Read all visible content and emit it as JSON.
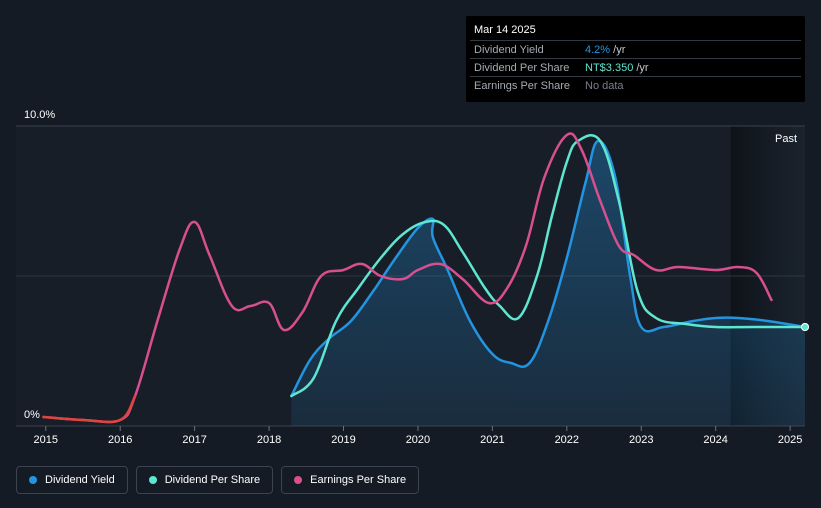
{
  "chart_data": {
    "type": "line",
    "title": "",
    "xlabel": "",
    "ylabel": "",
    "y_tick_labels": [
      "10.0%",
      "0%"
    ],
    "ylim": [
      0,
      10
    ],
    "xlim": [
      2014.6,
      2025.2
    ],
    "x_ticks": [
      "2015",
      "2016",
      "2017",
      "2018",
      "2019",
      "2020",
      "2021",
      "2022",
      "2023",
      "2024",
      "2025"
    ],
    "past_label": "Past",
    "past_start": 2024.2,
    "series": [
      {
        "name": "Dividend Yield",
        "color": "#2394df",
        "area": true,
        "points": [
          [
            2018.3,
            1.0
          ],
          [
            2018.55,
            2.2
          ],
          [
            2018.8,
            2.9
          ],
          [
            2019.1,
            3.5
          ],
          [
            2019.4,
            4.5
          ],
          [
            2019.7,
            5.6
          ],
          [
            2020.0,
            6.6
          ],
          [
            2020.2,
            6.9
          ],
          [
            2020.2,
            6.3
          ],
          [
            2020.4,
            5.2
          ],
          [
            2020.7,
            3.5
          ],
          [
            2021.0,
            2.4
          ],
          [
            2021.25,
            2.1
          ],
          [
            2021.5,
            2.1
          ],
          [
            2021.75,
            3.5
          ],
          [
            2022.0,
            5.6
          ],
          [
            2022.25,
            8.1
          ],
          [
            2022.42,
            9.5
          ],
          [
            2022.65,
            8.3
          ],
          [
            2022.85,
            5.0
          ],
          [
            2023.0,
            3.3
          ],
          [
            2023.3,
            3.3
          ],
          [
            2023.7,
            3.5
          ],
          [
            2024.0,
            3.6
          ],
          [
            2024.3,
            3.6
          ],
          [
            2024.7,
            3.5
          ],
          [
            2025.2,
            3.3
          ]
        ]
      },
      {
        "name": "Dividend Per Share",
        "color": "#5ee6d0",
        "area": false,
        "points": [
          [
            2018.3,
            1.0
          ],
          [
            2018.6,
            1.6
          ],
          [
            2018.9,
            3.5
          ],
          [
            2019.2,
            4.6
          ],
          [
            2019.5,
            5.6
          ],
          [
            2019.8,
            6.4
          ],
          [
            2020.1,
            6.8
          ],
          [
            2020.35,
            6.7
          ],
          [
            2020.6,
            5.8
          ],
          [
            2020.9,
            4.6
          ],
          [
            2021.1,
            4.0
          ],
          [
            2021.35,
            3.6
          ],
          [
            2021.6,
            5.0
          ],
          [
            2021.8,
            7.0
          ],
          [
            2022.0,
            8.8
          ],
          [
            2022.15,
            9.5
          ],
          [
            2022.45,
            9.5
          ],
          [
            2022.7,
            7.5
          ],
          [
            2022.95,
            4.5
          ],
          [
            2023.2,
            3.6
          ],
          [
            2023.6,
            3.4
          ],
          [
            2024.0,
            3.3
          ],
          [
            2024.5,
            3.3
          ],
          [
            2025.2,
            3.3
          ]
        ]
      },
      {
        "name": "Earnings Per Share",
        "color": "#d84f8f",
        "area": false,
        "points": [
          [
            2014.97,
            0.3
          ],
          [
            2015.5,
            0.2
          ],
          [
            2016.0,
            0.2
          ],
          [
            2016.2,
            1.0
          ],
          [
            2016.5,
            3.5
          ],
          [
            2016.8,
            5.9
          ],
          [
            2017.0,
            6.8
          ],
          [
            2017.2,
            5.7
          ],
          [
            2017.5,
            4.0
          ],
          [
            2017.75,
            4.0
          ],
          [
            2018.0,
            4.1
          ],
          [
            2018.2,
            3.2
          ],
          [
            2018.45,
            3.8
          ],
          [
            2018.7,
            5.0
          ],
          [
            2019.0,
            5.2
          ],
          [
            2019.25,
            5.4
          ],
          [
            2019.5,
            5.0
          ],
          [
            2019.8,
            4.9
          ],
          [
            2020.0,
            5.2
          ],
          [
            2020.3,
            5.4
          ],
          [
            2020.6,
            4.9
          ],
          [
            2020.95,
            4.1
          ],
          [
            2021.2,
            4.6
          ],
          [
            2021.45,
            6.0
          ],
          [
            2021.7,
            8.3
          ],
          [
            2022.0,
            9.7
          ],
          [
            2022.2,
            9.2
          ],
          [
            2022.45,
            7.5
          ],
          [
            2022.7,
            6.0
          ],
          [
            2022.9,
            5.7
          ],
          [
            2023.2,
            5.2
          ],
          [
            2023.5,
            5.3
          ],
          [
            2024.0,
            5.2
          ],
          [
            2024.3,
            5.3
          ],
          [
            2024.55,
            5.1
          ],
          [
            2024.75,
            4.2
          ]
        ]
      }
    ]
  },
  "tooltip": {
    "date": "Mar 14 2025",
    "rows": [
      {
        "label": "Dividend Yield",
        "value": "4.2%",
        "unit": " /yr",
        "color": "#2394df"
      },
      {
        "label": "Dividend Per Share",
        "value": "NT$3.350",
        "unit": " /yr",
        "color": "#5ee6d0"
      },
      {
        "label": "Earnings Per Share",
        "value": "No data",
        "unit": "",
        "color": "#7b818a"
      }
    ]
  },
  "legend": [
    {
      "label": "Dividend Yield",
      "color": "#2394df"
    },
    {
      "label": "Dividend Per Share",
      "color": "#5ee6d0"
    },
    {
      "label": "Earnings Per Share",
      "color": "#d84f8f"
    }
  ]
}
